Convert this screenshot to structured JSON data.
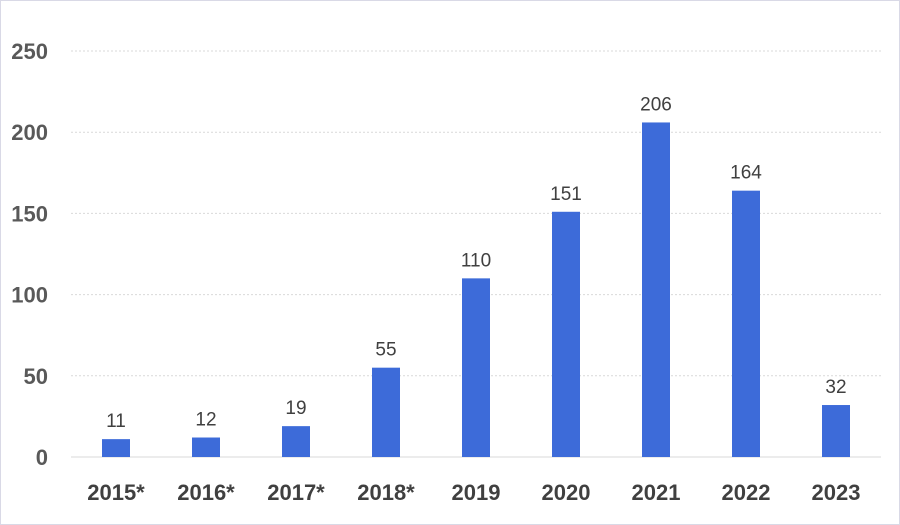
{
  "chart_data": {
    "type": "bar",
    "categories": [
      "2015*",
      "2016*",
      "2017*",
      "2018*",
      "2019",
      "2020",
      "2021",
      "2022",
      "2023"
    ],
    "values": [
      11,
      12,
      19,
      55,
      110,
      151,
      206,
      164,
      32
    ],
    "data_labels": [
      "11",
      "12",
      "19",
      "55",
      "110",
      "151",
      "206",
      "164",
      "32"
    ],
    "yticks": [
      "0",
      "50",
      "100",
      "150",
      "200",
      "250"
    ],
    "ylim": [
      0,
      250
    ],
    "grid": true,
    "legend": "none",
    "bar_color": "#3d6bd9"
  }
}
